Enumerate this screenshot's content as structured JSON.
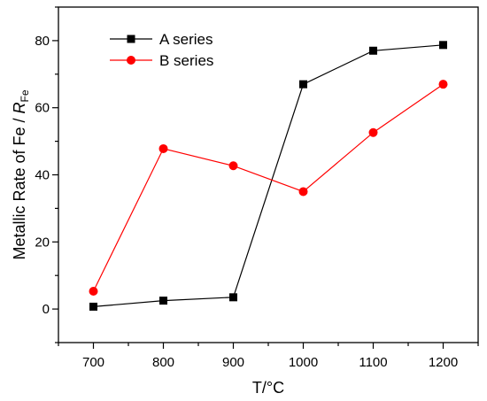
{
  "chart_data": {
    "type": "line",
    "x": [
      700,
      800,
      900,
      1000,
      1100,
      1200
    ],
    "xticks": [
      700,
      800,
      900,
      1000,
      1100,
      1200
    ],
    "yticks": [
      0,
      20,
      40,
      60,
      80
    ],
    "xlim": [
      650,
      1250
    ],
    "ylim": [
      -10,
      90
    ],
    "xlabel": "T/°C",
    "ylabel": {
      "main": "Metallic Rate of Fe / ",
      "var": "R",
      "sub": "Fe"
    },
    "legend_position": "top-left",
    "grid": false,
    "series": [
      {
        "name": "A series",
        "marker": "square",
        "color": "#000000",
        "values": [
          0.7,
          2.5,
          3.5,
          67,
          77,
          78.7
        ]
      },
      {
        "name": "B series",
        "marker": "circle",
        "color": "#ff0000",
        "values": [
          5.3,
          47.8,
          42.7,
          35,
          52.6,
          67
        ]
      }
    ]
  }
}
